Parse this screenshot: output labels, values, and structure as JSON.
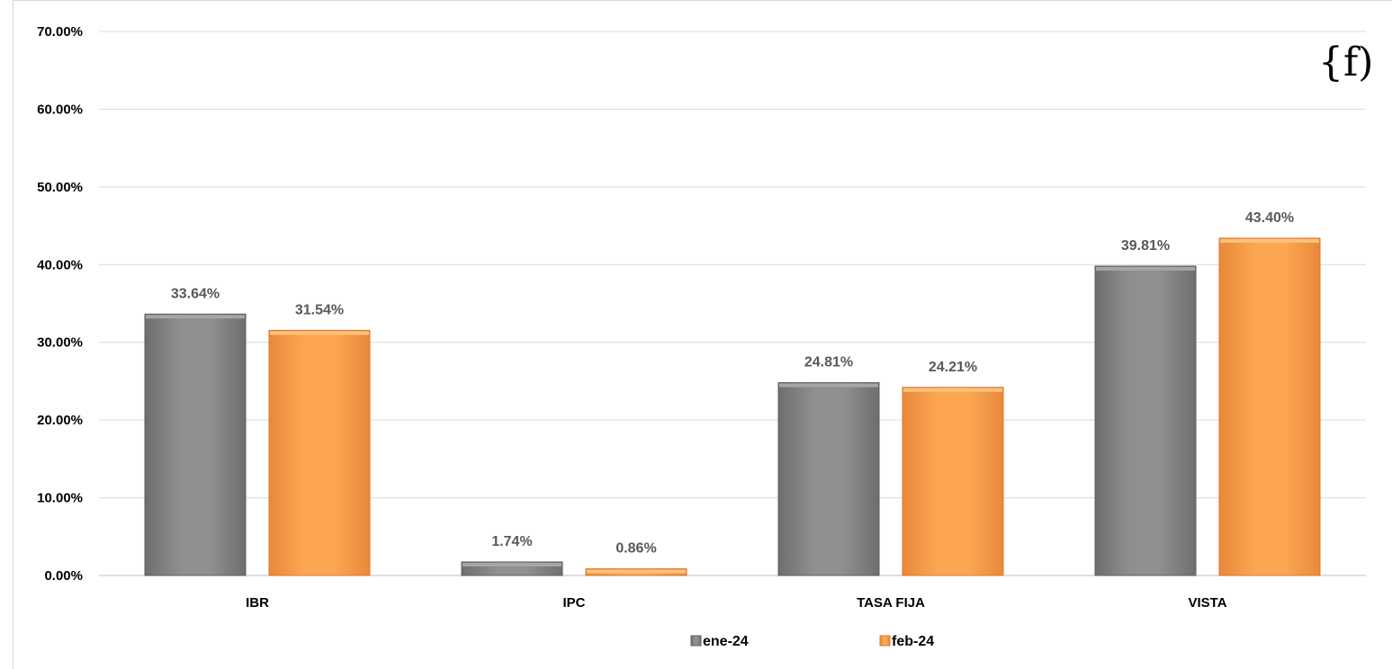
{
  "logo_text": "{f)",
  "chart_data": {
    "type": "bar",
    "categories": [
      "IBR",
      "IPC",
      "TASA FIJA",
      "VISTA"
    ],
    "series": [
      {
        "name": "ene-24",
        "color": "#8c8c8c",
        "values": [
          33.64,
          1.74,
          24.81,
          39.81
        ],
        "labels": [
          "33.64%",
          "1.74%",
          "24.81%",
          "39.81%"
        ]
      },
      {
        "name": "feb-24",
        "color": "#f9a24b",
        "values": [
          31.54,
          0.86,
          24.21,
          43.4
        ],
        "labels": [
          "31.54%",
          "0.86%",
          "24.21%",
          "43.40%"
        ]
      }
    ],
    "ylim": [
      0,
      70
    ],
    "yticks": [
      0,
      10,
      20,
      30,
      40,
      50,
      60,
      70
    ],
    "ytick_labels": [
      "0.00%",
      "10.00%",
      "20.00%",
      "30.00%",
      "40.00%",
      "50.00%",
      "60.00%",
      "70.00%"
    ],
    "grid": true,
    "legend_position": "bottom"
  }
}
